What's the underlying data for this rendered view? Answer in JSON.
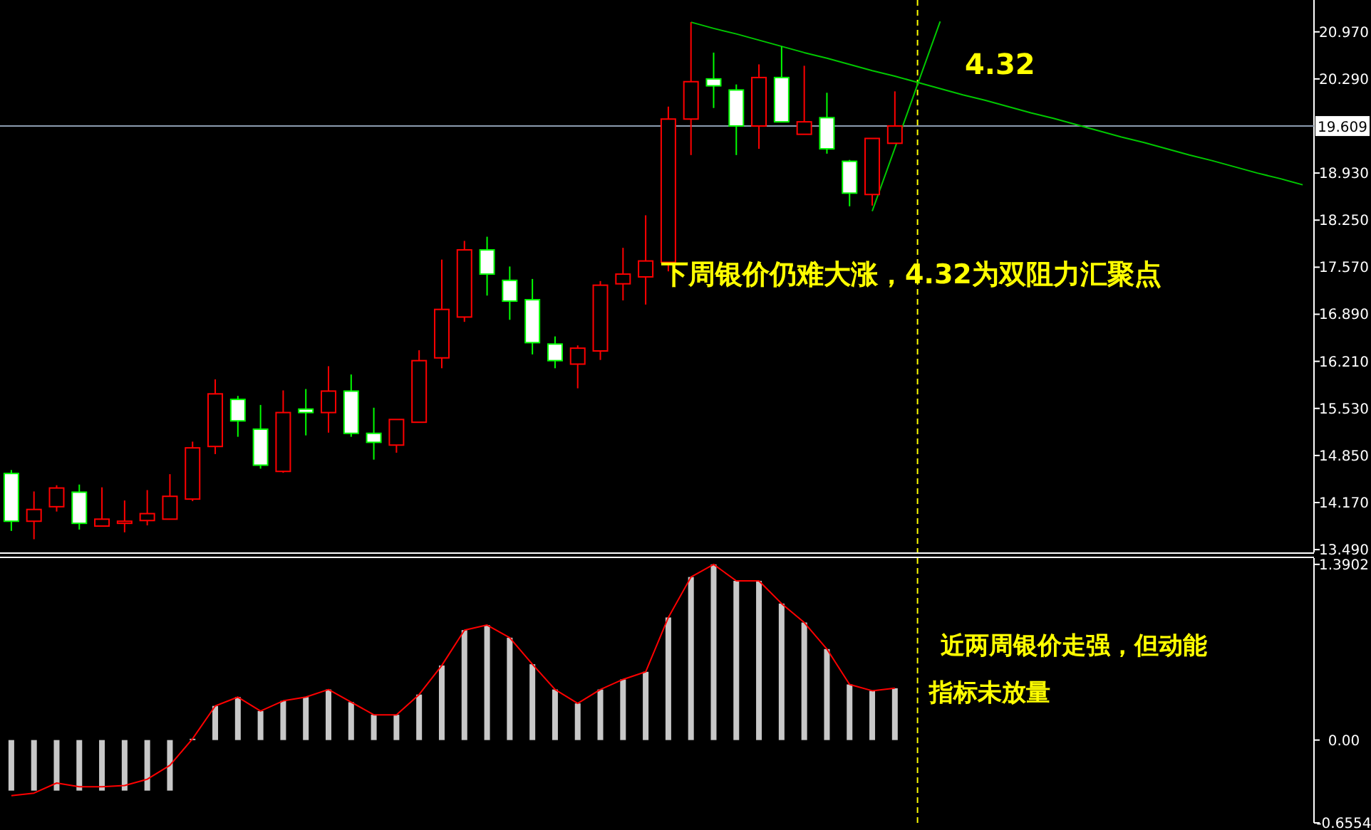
{
  "chart_data": [
    {
      "type": "candlestick",
      "categories": [
        null,
        null,
        null,
        null,
        null,
        null,
        null,
        null,
        null,
        null,
        null,
        null,
        null,
        null,
        null,
        null,
        null,
        null,
        null,
        null,
        null,
        null,
        null,
        null,
        null,
        null,
        null,
        null,
        null,
        null,
        null,
        null,
        null,
        null,
        null,
        null,
        null,
        null,
        null,
        null,
        null,
        null,
        null,
        null,
        null,
        null,
        null,
        null,
        null,
        null,
        null,
        null,
        null,
        null,
        null,
        null,
        null,
        null
      ],
      "ohlc": [
        [
          14.59,
          14.64,
          13.76,
          13.9
        ],
        [
          13.9,
          14.33,
          13.64,
          14.07
        ],
        [
          14.11,
          14.42,
          14.04,
          14.38
        ],
        [
          14.32,
          14.43,
          13.78,
          13.87
        ],
        [
          13.83,
          14.39,
          13.83,
          13.93
        ],
        [
          13.87,
          14.2,
          13.74,
          13.9
        ],
        [
          13.91,
          14.35,
          13.84,
          14.01
        ],
        [
          13.93,
          14.58,
          13.93,
          14.26
        ],
        [
          14.22,
          15.05,
          14.19,
          14.96
        ],
        [
          14.98,
          15.95,
          14.87,
          15.74
        ],
        [
          15.66,
          15.71,
          15.12,
          15.35
        ],
        [
          15.23,
          15.58,
          14.66,
          14.71
        ],
        [
          14.62,
          15.79,
          14.6,
          15.47
        ],
        [
          15.52,
          15.81,
          15.14,
          15.47
        ],
        [
          15.47,
          16.14,
          15.18,
          15.78
        ],
        [
          15.78,
          16.02,
          15.12,
          15.17
        ],
        [
          15.17,
          15.54,
          14.79,
          15.04
        ],
        [
          15.0,
          15.37,
          14.89,
          15.37
        ],
        [
          15.33,
          16.37,
          15.33,
          16.22
        ],
        [
          16.26,
          17.68,
          16.11,
          16.96
        ],
        [
          16.85,
          17.95,
          16.78,
          17.82
        ],
        [
          17.82,
          18.01,
          17.16,
          17.47
        ],
        [
          17.38,
          17.58,
          16.81,
          17.08
        ],
        [
          17.1,
          17.4,
          16.31,
          16.48
        ],
        [
          16.46,
          16.57,
          16.11,
          16.22
        ],
        [
          16.17,
          16.44,
          15.82,
          16.4
        ],
        [
          16.36,
          17.37,
          16.23,
          17.31
        ],
        [
          17.33,
          17.85,
          17.09,
          17.47
        ],
        [
          17.43,
          18.32,
          17.03,
          17.66
        ],
        [
          17.64,
          19.89,
          17.51,
          19.71
        ],
        [
          19.71,
          21.11,
          19.19,
          20.25
        ],
        [
          20.29,
          20.67,
          19.87,
          20.19
        ],
        [
          20.13,
          20.21,
          19.19,
          19.61
        ],
        [
          19.61,
          20.5,
          19.28,
          20.31
        ],
        [
          20.31,
          20.76,
          19.67,
          19.67
        ],
        [
          19.49,
          20.48,
          19.49,
          19.67
        ],
        [
          19.73,
          20.09,
          19.21,
          19.28
        ],
        [
          19.1,
          19.12,
          18.45,
          18.64
        ],
        [
          18.62,
          19.43,
          18.46,
          19.43
        ],
        [
          19.36,
          20.11,
          19.36,
          19.61
        ],
        null,
        null,
        null,
        null,
        null,
        null,
        null,
        null,
        null,
        null,
        null,
        null,
        null,
        null,
        null,
        null,
        null,
        null
      ],
      "colors": [
        "#00ff00",
        "#ff0000",
        "#ff0000",
        "#00ff00",
        "#ff0000",
        "#ff0000",
        "#ff0000",
        "#ff0000",
        "#ff0000",
        "#ff0000",
        "#00ff00",
        "#00ff00",
        "#ff0000",
        "#00ff00",
        "#ff0000",
        "#00ff00",
        "#00ff00",
        "#ff0000",
        "#ff0000",
        "#ff0000",
        "#ff0000",
        "#00ff00",
        "#00ff00",
        "#00ff00",
        "#00ff00",
        "#ff0000",
        "#ff0000",
        "#ff0000",
        "#ff0000",
        "#ff0000",
        "#ff0000",
        "#00ff00",
        "#00ff00",
        "#ff0000",
        "#00ff00",
        "#ff0000",
        "#00ff00",
        "#00ff00",
        "#ff0000",
        "#ff0000",
        null,
        null,
        null,
        null,
        null,
        null,
        null,
        null,
        null,
        null,
        null,
        null,
        null,
        null,
        null,
        null,
        null,
        null
      ],
      "series": [
        {
          "type": "line",
          "color": "#00c800",
          "values": [
            null,
            null,
            null,
            null,
            null,
            null,
            null,
            null,
            null,
            null,
            null,
            null,
            null,
            null,
            null,
            null,
            null,
            null,
            null,
            null,
            null,
            null,
            null,
            null,
            null,
            null,
            null,
            null,
            null,
            null,
            21.11,
            21.02,
            20.94,
            20.85,
            20.76,
            20.67,
            20.59,
            20.5,
            20.41,
            20.33,
            20.24,
            20.15,
            20.06,
            19.98,
            19.89,
            19.8,
            19.72,
            19.63,
            19.54,
            19.45,
            19.37,
            19.28,
            19.19,
            19.11,
            19.02,
            18.93,
            18.85,
            18.76
          ]
        },
        {
          "type": "line",
          "color": "#00c800",
          "values": [
            null,
            null,
            null,
            null,
            null,
            null,
            null,
            null,
            null,
            null,
            null,
            null,
            null,
            null,
            null,
            null,
            null,
            null,
            null,
            null,
            null,
            null,
            null,
            null,
            null,
            null,
            null,
            null,
            null,
            null,
            null,
            null,
            null,
            null,
            null,
            null,
            null,
            null,
            18.38,
            19.29,
            20.21,
            21.12,
            null,
            null,
            null,
            null,
            null,
            null,
            null,
            null,
            null,
            null,
            null,
            null,
            null,
            null,
            null,
            null
          ]
        }
      ],
      "ylim": [
        13.45,
        21.43
      ],
      "yticks": [
        {
          "value": 20.97,
          "label": "20.970"
        },
        {
          "value": 20.29,
          "label": "20.290"
        },
        {
          "value": 18.93,
          "label": "18.930"
        },
        {
          "value": 18.25,
          "label": "18.250"
        },
        {
          "value": 17.57,
          "label": "17.570"
        },
        {
          "value": 16.89,
          "label": "16.890"
        },
        {
          "value": 16.21,
          "label": "16.210"
        },
        {
          "value": 15.53,
          "label": "15.530"
        },
        {
          "value": 14.85,
          "label": "14.850"
        },
        {
          "value": 14.17,
          "label": "14.170"
        },
        {
          "value": 13.49,
          "label": "13.490"
        }
      ],
      "ref_lines": [
        {
          "axis": "y",
          "value": 19.609,
          "label": "19.609",
          "color": "#8c9cb0"
        }
      ],
      "annotations": [
        "4.32",
        "下周银价仍难大涨，4.32为双阻力汇聚点"
      ]
    },
    {
      "type": "bar",
      "categories": [
        null,
        null,
        null,
        null,
        null,
        null,
        null,
        null,
        null,
        null,
        null,
        null,
        null,
        null,
        null,
        null,
        null,
        null,
        null,
        null,
        null,
        null,
        null,
        null,
        null,
        null,
        null,
        null,
        null,
        null,
        null,
        null,
        null,
        null,
        null,
        null,
        null,
        null,
        null,
        null,
        null,
        null,
        null,
        null,
        null,
        null,
        null,
        null,
        null,
        null,
        null,
        null,
        null,
        null,
        null,
        null,
        null,
        null
      ],
      "series": [
        {
          "type": "bar",
          "color": "#c8c8c8",
          "values": [
            -0.4,
            -0.4,
            -0.4,
            -0.4,
            -0.4,
            -0.4,
            -0.4,
            -0.4,
            0.01,
            0.27,
            0.34,
            0.23,
            0.31,
            0.34,
            0.4,
            0.3,
            0.2,
            0.2,
            0.36,
            0.59,
            0.87,
            0.91,
            0.81,
            0.6,
            0.4,
            0.29,
            0.4,
            0.48,
            0.54,
            0.97,
            1.29,
            1.39,
            1.26,
            1.26,
            1.08,
            0.93,
            0.72,
            0.44,
            0.39,
            0.41,
            null,
            null,
            null,
            null,
            null,
            null,
            null,
            null,
            null,
            null,
            null,
            null,
            null,
            null,
            null,
            null,
            null,
            null
          ]
        },
        {
          "type": "line",
          "color": "#ff0000",
          "values": [
            -0.44,
            -0.42,
            -0.34,
            -0.37,
            -0.37,
            -0.36,
            -0.31,
            -0.2,
            0.01,
            0.27,
            0.34,
            0.23,
            0.31,
            0.34,
            0.4,
            0.3,
            0.2,
            0.2,
            0.36,
            0.59,
            0.87,
            0.91,
            0.81,
            0.6,
            0.4,
            0.29,
            0.4,
            0.48,
            0.54,
            0.97,
            1.29,
            1.39,
            1.26,
            1.26,
            1.08,
            0.93,
            0.72,
            0.44,
            0.39,
            0.41,
            null,
            null,
            null,
            null,
            null,
            null,
            null,
            null,
            null,
            null,
            null,
            null,
            null,
            null,
            null,
            null,
            null,
            null
          ]
        }
      ],
      "ylim": [
        -0.6554,
        1.44
      ],
      "yticks": [
        {
          "value": 1.3902,
          "label": "1.3902"
        },
        {
          "value": 0,
          "label": "0.00"
        },
        {
          "value": -0.6554,
          "label": "-0.6554"
        }
      ],
      "annotations": [
        "近两周银价走强，但动能指标未放量"
      ]
    }
  ]
}
